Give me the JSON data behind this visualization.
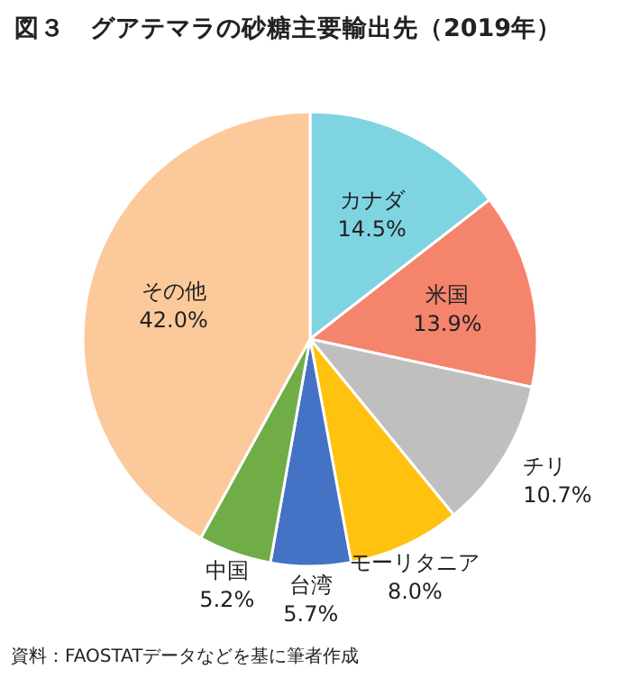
{
  "chart_data": {
    "type": "pie",
    "title": "図３　グアテマラの砂糖主要輸出先（2019年）",
    "categories": [
      "カナダ",
      "米国",
      "チリ",
      "モーリタニア",
      "台湾",
      "中国",
      "その他"
    ],
    "values": [
      14.5,
      13.9,
      10.7,
      8.0,
      5.7,
      5.2,
      42.0
    ],
    "value_labels": [
      "14.5%",
      "13.9%",
      "10.7%",
      "8.0%",
      "5.7%",
      "5.2%",
      "42.0%"
    ],
    "colors": [
      "#7fd4e2",
      "#f4846c",
      "#bfbfbf",
      "#ffc20e",
      "#4472c4",
      "#70ad47",
      "#fcc99b"
    ],
    "annotations": [
      "資料：FAOSTATデータなどを基に筆者作成"
    ]
  }
}
